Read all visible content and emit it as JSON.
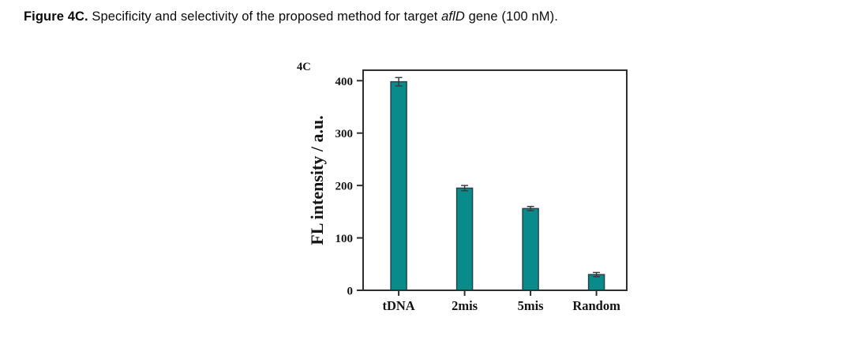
{
  "caption": {
    "label": "Figure 4C.",
    "text_before_italic": " Specificity and selectivity of the proposed method for target ",
    "italic_text": "aflD",
    "text_after_italic": " gene (100 nM)."
  },
  "panel_label": "4C",
  "chart_data": {
    "type": "bar",
    "title": "",
    "categories": [
      "tDNA",
      "2mis",
      "5mis",
      "Random"
    ],
    "values": [
      398,
      195,
      156,
      30
    ],
    "errors": [
      8,
      5,
      4,
      4
    ],
    "xlabel": "",
    "ylabel": "FL intensity / a.u.",
    "ylim": [
      0,
      420
    ],
    "yticks": [
      0,
      100,
      200,
      300,
      400
    ],
    "grid": false,
    "legend": false,
    "colors": {
      "bar_fill": "#0a8b8b",
      "bar_edge": "#25454d",
      "error_bar": "#3f3333",
      "axis": "#2f2f2f",
      "text": "#141414"
    }
  }
}
